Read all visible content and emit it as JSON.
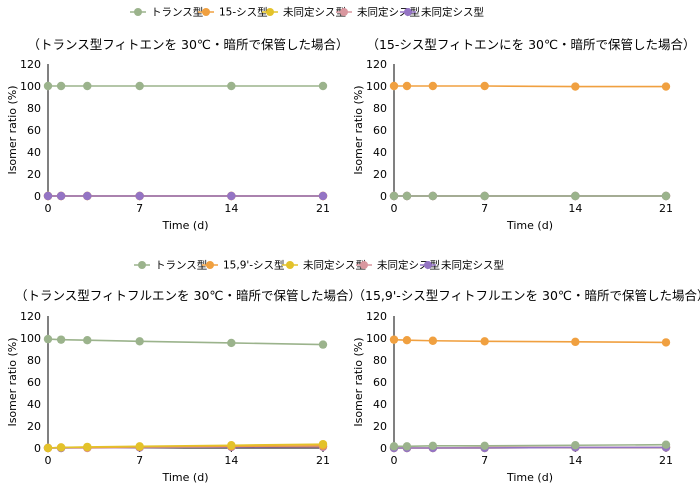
{
  "legends": [
    {
      "items": [
        {
          "label": "トランス型",
          "color": "#9bb38c"
        },
        {
          "label": "15-シス型",
          "color": "#f0a040"
        },
        {
          "label": "未同定シス型",
          "color": "#e3c22a"
        },
        {
          "label": "未同定シス型",
          "color": "#d9979f"
        },
        {
          "label": "未同定シス型",
          "color": "#9474c4"
        }
      ]
    },
    {
      "items": [
        {
          "label": "トランス型",
          "color": "#9bb38c"
        },
        {
          "label": "15,9'-シス型",
          "color": "#f0a040"
        },
        {
          "label": "未同定シス型",
          "color": "#e3c22a"
        },
        {
          "label": "未同定シス型",
          "color": "#d9979f"
        },
        {
          "label": "未同定シス型",
          "color": "#9474c4"
        }
      ]
    }
  ],
  "chart_data": [
    {
      "type": "line",
      "title": "（トランス型フィトエンを 30℃・暗所で保管した場合）",
      "xlabel": "Time (d)",
      "ylabel": "Isomer ratio (%)",
      "x": [
        0,
        1,
        3,
        7,
        14,
        21
      ],
      "xticks": [
        0,
        7,
        14,
        21
      ],
      "yticks": [
        0,
        20,
        40,
        60,
        80,
        100,
        120
      ],
      "xlim": [
        0,
        21
      ],
      "ylim": [
        0,
        120
      ],
      "series": [
        {
          "name": "未同定シス型",
          "color": "#e3c22a",
          "values": [
            0,
            0,
            0,
            0,
            0,
            0
          ]
        },
        {
          "name": "未同定シス型",
          "color": "#d9979f",
          "values": [
            0,
            0,
            0,
            0,
            0,
            0
          ]
        },
        {
          "name": "15-シス型",
          "color": "#f0a040",
          "values": [
            0,
            0,
            0,
            0,
            0,
            0
          ]
        },
        {
          "name": "未同定シス型",
          "color": "#9474c4",
          "values": [
            0,
            0,
            0,
            0,
            0,
            0
          ]
        },
        {
          "name": "トランス型",
          "color": "#9bb38c",
          "values": [
            100,
            100,
            100,
            100,
            100,
            100
          ]
        }
      ]
    },
    {
      "type": "line",
      "title": "（15-シス型フィトエンにを 30℃・暗所で保管した場合）",
      "xlabel": "Time (d)",
      "ylabel": "Isomer ratio (%)",
      "x": [
        0,
        1,
        3,
        7,
        14,
        21
      ],
      "xticks": [
        0,
        7,
        14,
        21
      ],
      "yticks": [
        0,
        20,
        40,
        60,
        80,
        100,
        120
      ],
      "xlim": [
        0,
        21
      ],
      "ylim": [
        0,
        120
      ],
      "series": [
        {
          "name": "未同定シス型",
          "color": "#e3c22a",
          "values": [
            0,
            0,
            0,
            0,
            0,
            0
          ]
        },
        {
          "name": "未同定シス型",
          "color": "#d9979f",
          "values": [
            0,
            0,
            0,
            0,
            0,
            0
          ]
        },
        {
          "name": "未同定シス型",
          "color": "#9474c4",
          "values": [
            0,
            0,
            0,
            0,
            0,
            0
          ]
        },
        {
          "name": "トランス型",
          "color": "#9bb38c",
          "values": [
            0,
            0,
            0,
            0,
            0,
            0
          ]
        },
        {
          "name": "15-シス型",
          "color": "#f0a040",
          "values": [
            100,
            100,
            100,
            100,
            99.5,
            99.5
          ]
        }
      ]
    },
    {
      "type": "line",
      "title": "（トランス型フィトフルエンを 30℃・暗所で保管した場合）",
      "xlabel": "Time (d)",
      "ylabel": "Isomer ratio (%)",
      "x": [
        0,
        1,
        3,
        7,
        14,
        21
      ],
      "xticks": [
        0,
        7,
        14,
        21
      ],
      "yticks": [
        0,
        20,
        40,
        60,
        80,
        100,
        120
      ],
      "xlim": [
        0,
        21
      ],
      "ylim": [
        0,
        120
      ],
      "series": [
        {
          "name": "未同定シス型",
          "color": "#d9979f",
          "values": [
            0,
            0,
            0,
            0.5,
            1,
            1
          ]
        },
        {
          "name": "未同定シス型",
          "color": "#9474c4",
          "values": [
            0,
            0,
            0.5,
            0.5,
            1,
            1.5
          ]
        },
        {
          "name": "15,9'-シス型",
          "color": "#f0a040",
          "values": [
            0,
            0.5,
            0.5,
            1,
            1.5,
            2
          ]
        },
        {
          "name": "未同定シス型",
          "color": "#e3c22a",
          "values": [
            0,
            0.5,
            1,
            1.5,
            2.5,
            3.5
          ]
        },
        {
          "name": "トランス型",
          "color": "#9bb38c",
          "values": [
            99,
            98.5,
            98,
            97,
            95.5,
            94
          ]
        }
      ]
    },
    {
      "type": "line",
      "title": "（15,9'-シス型フィトフルエンを 30℃・暗所で保管した場合）",
      "xlabel": "Time (d)",
      "ylabel": "Isomer ratio (%)",
      "x": [
        0,
        1,
        3,
        7,
        14,
        21
      ],
      "xticks": [
        0,
        7,
        14,
        21
      ],
      "yticks": [
        0,
        20,
        40,
        60,
        80,
        100,
        120
      ],
      "xlim": [
        0,
        21
      ],
      "ylim": [
        0,
        120
      ],
      "series": [
        {
          "name": "未同定シス型",
          "color": "#e3c22a",
          "values": [
            0,
            0,
            0,
            0,
            0.5,
            0.5
          ]
        },
        {
          "name": "未同定シス型",
          "color": "#d9979f",
          "values": [
            0,
            0,
            0,
            0.5,
            0.5,
            0.5
          ]
        },
        {
          "name": "未同定シス型",
          "color": "#9474c4",
          "values": [
            0,
            0,
            0,
            0,
            0.5,
            0.5
          ]
        },
        {
          "name": "トランス型",
          "color": "#9bb38c",
          "values": [
            1.5,
            1.5,
            2,
            2,
            2.5,
            3
          ]
        },
        {
          "name": "15,9'-シス型",
          "color": "#f0a040",
          "values": [
            98.5,
            98,
            97.5,
            97,
            96.5,
            96
          ]
        }
      ]
    }
  ]
}
